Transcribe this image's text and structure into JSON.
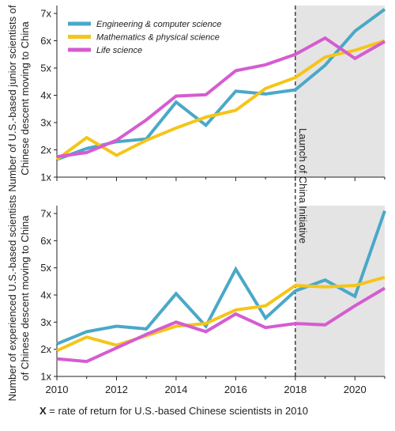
{
  "chart_data": [
    {
      "type": "line",
      "ylabel": "Number of U.S.-based junior scientists of Chinese descent moving to China",
      "x": [
        2010,
        2011,
        2012,
        2013,
        2014,
        2015,
        2016,
        2017,
        2018,
        2019,
        2020,
        2021
      ],
      "xlim": [
        2010,
        2021
      ],
      "ylim": [
        1,
        7
      ],
      "yticks": [
        "1x",
        "2x",
        "3x",
        "4x",
        "5x",
        "6x",
        "7x"
      ],
      "legend_position": "top-left",
      "series": [
        {
          "name": "Engineering & computer science",
          "color": "#4aa8c8",
          "values": [
            1.65,
            2.05,
            2.3,
            2.4,
            3.75,
            2.9,
            4.15,
            4.05,
            4.2,
            5.1,
            6.35,
            7.15
          ]
        },
        {
          "name": "Mathematics & physical science",
          "color": "#f5c518",
          "values": [
            1.65,
            2.45,
            1.8,
            2.35,
            2.8,
            3.2,
            3.45,
            4.25,
            4.65,
            5.4,
            5.65,
            6.0
          ]
        },
        {
          "name": "Life science",
          "color": "#d55cd1",
          "values": [
            1.75,
            1.9,
            2.35,
            3.1,
            3.97,
            4.02,
            4.9,
            5.12,
            5.5,
            6.1,
            5.35,
            5.97
          ]
        }
      ]
    },
    {
      "type": "line",
      "ylabel": "Number of experienced U.S.-based scientists of Chinese descent moving to China",
      "x": [
        2010,
        2011,
        2012,
        2013,
        2014,
        2015,
        2016,
        2017,
        2018,
        2019,
        2020,
        2021
      ],
      "xlim": [
        2010,
        2021
      ],
      "ylim": [
        1,
        7
      ],
      "yticks": [
        "1x",
        "2x",
        "3x",
        "4x",
        "5x",
        "6x",
        "7x"
      ],
      "xticks": [
        "2010",
        "2012",
        "2014",
        "2016",
        "2018",
        "2020"
      ],
      "series": [
        {
          "name": "Engineering & computer science",
          "color": "#4aa8c8",
          "values": [
            2.2,
            2.65,
            2.85,
            2.75,
            4.05,
            2.85,
            4.95,
            3.15,
            4.15,
            4.55,
            3.95,
            7.1
          ]
        },
        {
          "name": "Mathematics & physical science",
          "color": "#f5c518",
          "values": [
            1.95,
            2.45,
            2.15,
            2.5,
            2.85,
            2.95,
            3.45,
            3.6,
            4.35,
            4.3,
            4.35,
            4.65
          ]
        },
        {
          "name": "Life science",
          "color": "#d55cd1",
          "values": [
            1.65,
            1.55,
            2.05,
            2.55,
            3.0,
            2.65,
            3.3,
            2.8,
            2.95,
            2.9,
            3.6,
            4.25
          ]
        }
      ]
    }
  ],
  "annotation": {
    "label": "Launch of China Initiative",
    "x": 2018
  },
  "footnote": {
    "symbol": "X",
    "text": " = rate of return for U.S.-based Chinese scientists in 2010"
  }
}
